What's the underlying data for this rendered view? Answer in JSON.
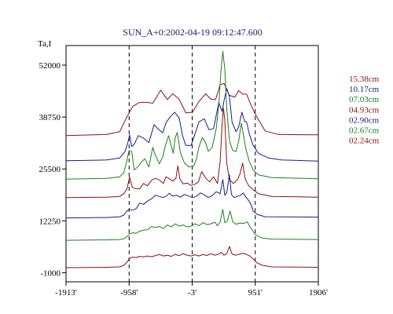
{
  "chart_data": {
    "type": "line",
    "title": "SUN_A+0:2002-04-19 09:12:47.600",
    "ylabel": "Ta,I",
    "xlabel": "",
    "x_ticks": [
      "-1913'",
      "-958'",
      "-3'",
      "951'",
      "1906'"
    ],
    "x_tick_values": [
      -1913,
      -958,
      -3,
      951,
      1906
    ],
    "xlim": [
      -1913,
      1906
    ],
    "y_ticks": [
      "52000",
      "38750",
      "25500",
      "12250",
      "-1000"
    ],
    "y_tick_values": [
      52000,
      38750,
      25500,
      12250,
      -1000
    ],
    "ylim": [
      -3300,
      57000
    ],
    "vlines": [
      -958,
      -3,
      951
    ],
    "grid": false,
    "legend_position": "right",
    "series": [
      {
        "name": "15.38cm",
        "color": "#8b1010",
        "points": [
          [
            -1913,
            34000
          ],
          [
            -1300,
            34300
          ],
          [
            -1100,
            35000
          ],
          [
            -1000,
            38500
          ],
          [
            -900,
            41500
          ],
          [
            -800,
            42500
          ],
          [
            -700,
            42500
          ],
          [
            -600,
            42300
          ],
          [
            -480,
            45600
          ],
          [
            -380,
            43200
          ],
          [
            -300,
            44700
          ],
          [
            -200,
            43300
          ],
          [
            -100,
            39800
          ],
          [
            0,
            40000
          ],
          [
            100,
            42700
          ],
          [
            200,
            44700
          ],
          [
            280,
            43300
          ],
          [
            350,
            43200
          ],
          [
            420,
            47000
          ],
          [
            480,
            47300
          ],
          [
            560,
            44300
          ],
          [
            640,
            43800
          ],
          [
            700,
            45500
          ],
          [
            760,
            44600
          ],
          [
            820,
            44600
          ],
          [
            870,
            42500
          ],
          [
            951,
            39500
          ],
          [
            1100,
            35200
          ],
          [
            1300,
            34300
          ],
          [
            1906,
            34200
          ]
        ]
      },
      {
        "name": "10.17cm",
        "color": "#1a1a8a",
        "points": [
          [
            -1913,
            27600
          ],
          [
            -1300,
            27800
          ],
          [
            -1100,
            28300
          ],
          [
            -1020,
            30000
          ],
          [
            -980,
            32000
          ],
          [
            -950,
            34200
          ],
          [
            -920,
            31200
          ],
          [
            -880,
            31800
          ],
          [
            -820,
            34000
          ],
          [
            -750,
            33500
          ],
          [
            -660,
            32200
          ],
          [
            -580,
            36800
          ],
          [
            -520,
            35700
          ],
          [
            -450,
            34700
          ],
          [
            -400,
            37300
          ],
          [
            -350,
            38500
          ],
          [
            -270,
            40000
          ],
          [
            -200,
            38500
          ],
          [
            -150,
            34000
          ],
          [
            -100,
            31500
          ],
          [
            -20,
            31500
          ],
          [
            40,
            34500
          ],
          [
            100,
            37500
          ],
          [
            180,
            38300
          ],
          [
            250,
            35500
          ],
          [
            320,
            35800
          ],
          [
            400,
            42500
          ],
          [
            450,
            40200
          ],
          [
            480,
            43000
          ],
          [
            520,
            46000
          ],
          [
            560,
            44000
          ],
          [
            600,
            37500
          ],
          [
            660,
            35000
          ],
          [
            700,
            36200
          ],
          [
            750,
            40000
          ],
          [
            790,
            37600
          ],
          [
            820,
            37500
          ],
          [
            860,
            34500
          ],
          [
            920,
            31500
          ],
          [
            1000,
            29500
          ],
          [
            1150,
            28300
          ],
          [
            1350,
            27800
          ],
          [
            1906,
            27500
          ]
        ]
      },
      {
        "name": "07.03cm",
        "color": "#1a801a",
        "points": [
          [
            -1913,
            22900
          ],
          [
            -1300,
            23100
          ],
          [
            -1100,
            23500
          ],
          [
            -1040,
            24500
          ],
          [
            -1000,
            27000
          ],
          [
            -960,
            30200
          ],
          [
            -920,
            30000
          ],
          [
            -880,
            25200
          ],
          [
            -820,
            26200
          ],
          [
            -760,
            27500
          ],
          [
            -720,
            28100
          ],
          [
            -660,
            26000
          ],
          [
            -600,
            31000
          ],
          [
            -560,
            29000
          ],
          [
            -500,
            26800
          ],
          [
            -450,
            28600
          ],
          [
            -410,
            31400
          ],
          [
            -360,
            34000
          ],
          [
            -330,
            32000
          ],
          [
            -290,
            29500
          ],
          [
            -260,
            33500
          ],
          [
            -230,
            34800
          ],
          [
            -180,
            29500
          ],
          [
            -120,
            27000
          ],
          [
            -50,
            26000
          ],
          [
            20,
            26300
          ],
          [
            60,
            28000
          ],
          [
            100,
            31200
          ],
          [
            150,
            33500
          ],
          [
            200,
            32200
          ],
          [
            240,
            30000
          ],
          [
            300,
            31000
          ],
          [
            360,
            35800
          ],
          [
            400,
            42000
          ],
          [
            430,
            50000
          ],
          [
            460,
            55500
          ],
          [
            490,
            51000
          ],
          [
            520,
            41000
          ],
          [
            560,
            32700
          ],
          [
            610,
            30200
          ],
          [
            660,
            30000
          ],
          [
            700,
            32500
          ],
          [
            740,
            37200
          ],
          [
            770,
            34500
          ],
          [
            810,
            30500
          ],
          [
            860,
            27500
          ],
          [
            920,
            25200
          ],
          [
            1000,
            24000
          ],
          [
            1200,
            23300
          ],
          [
            1906,
            23000
          ]
        ]
      },
      {
        "name": "04.93cm",
        "color": "#8b1010",
        "points": [
          [
            -1913,
            18200
          ],
          [
            -1300,
            18300
          ],
          [
            -1100,
            18500
          ],
          [
            -1040,
            19200
          ],
          [
            -990,
            20400
          ],
          [
            -950,
            23500
          ],
          [
            -910,
            20800
          ],
          [
            -860,
            20500
          ],
          [
            -800,
            20400
          ],
          [
            -740,
            21800
          ],
          [
            -680,
            21200
          ],
          [
            -620,
            22600
          ],
          [
            -560,
            23100
          ],
          [
            -500,
            22700
          ],
          [
            -440,
            21800
          ],
          [
            -400,
            23500
          ],
          [
            -350,
            23000
          ],
          [
            -300,
            22400
          ],
          [
            -250,
            23100
          ],
          [
            -220,
            26300
          ],
          [
            -190,
            23000
          ],
          [
            -140,
            21700
          ],
          [
            -80,
            21900
          ],
          [
            -20,
            21300
          ],
          [
            40,
            21600
          ],
          [
            90,
            22200
          ],
          [
            140,
            24800
          ],
          [
            200,
            23200
          ],
          [
            260,
            22200
          ],
          [
            320,
            23500
          ],
          [
            380,
            21800
          ],
          [
            420,
            27500
          ],
          [
            450,
            37000
          ],
          [
            470,
            41000
          ],
          [
            490,
            38000
          ],
          [
            520,
            27000
          ],
          [
            560,
            22800
          ],
          [
            620,
            21800
          ],
          [
            680,
            22700
          ],
          [
            720,
            24200
          ],
          [
            760,
            27000
          ],
          [
            800,
            22900
          ],
          [
            850,
            21300
          ],
          [
            920,
            20200
          ],
          [
            1000,
            19200
          ],
          [
            1200,
            18500
          ],
          [
            1906,
            18300
          ]
        ]
      },
      {
        "name": "02.90cm",
        "color": "#1a1a8a",
        "points": [
          [
            -1913,
            13000
          ],
          [
            -1300,
            13100
          ],
          [
            -1100,
            13300
          ],
          [
            -1040,
            13700
          ],
          [
            -990,
            14800
          ],
          [
            -950,
            15200
          ],
          [
            -900,
            15000
          ],
          [
            -850,
            15400
          ],
          [
            -800,
            16800
          ],
          [
            -740,
            16500
          ],
          [
            -680,
            17300
          ],
          [
            -620,
            17900
          ],
          [
            -560,
            18800
          ],
          [
            -500,
            18500
          ],
          [
            -450,
            18200
          ],
          [
            -400,
            18500
          ],
          [
            -350,
            19300
          ],
          [
            -300,
            18600
          ],
          [
            -240,
            18800
          ],
          [
            -180,
            18300
          ],
          [
            -120,
            19000
          ],
          [
            -60,
            18600
          ],
          [
            0,
            18200
          ],
          [
            60,
            18500
          ],
          [
            120,
            19400
          ],
          [
            180,
            18900
          ],
          [
            240,
            18200
          ],
          [
            300,
            18700
          ],
          [
            360,
            19700
          ],
          [
            420,
            19200
          ],
          [
            460,
            22800
          ],
          [
            490,
            18800
          ],
          [
            520,
            19500
          ],
          [
            560,
            24000
          ],
          [
            590,
            19000
          ],
          [
            630,
            18200
          ],
          [
            680,
            18500
          ],
          [
            730,
            18800
          ],
          [
            770,
            19400
          ],
          [
            800,
            18600
          ],
          [
            840,
            17700
          ],
          [
            880,
            16700
          ],
          [
            920,
            14800
          ],
          [
            980,
            13900
          ],
          [
            1100,
            13300
          ],
          [
            1906,
            13200
          ]
        ]
      },
      {
        "name": "02.67cm",
        "color": "#1a801a",
        "points": [
          [
            -1913,
            7300
          ],
          [
            -1300,
            7400
          ],
          [
            -1100,
            7500
          ],
          [
            -1040,
            7700
          ],
          [
            -990,
            8200
          ],
          [
            -950,
            9000
          ],
          [
            -900,
            9200
          ],
          [
            -850,
            9100
          ],
          [
            -800,
            9600
          ],
          [
            -740,
            9900
          ],
          [
            -680,
            10000
          ],
          [
            -620,
            10800
          ],
          [
            -560,
            10600
          ],
          [
            -500,
            10800
          ],
          [
            -440,
            10300
          ],
          [
            -380,
            11200
          ],
          [
            -320,
            10700
          ],
          [
            -260,
            11500
          ],
          [
            -200,
            10900
          ],
          [
            -140,
            11200
          ],
          [
            -80,
            10700
          ],
          [
            -20,
            10900
          ],
          [
            40,
            11500
          ],
          [
            100,
            11000
          ],
          [
            160,
            11800
          ],
          [
            220,
            11300
          ],
          [
            280,
            11500
          ],
          [
            340,
            11900
          ],
          [
            380,
            11000
          ],
          [
            420,
            12000
          ],
          [
            460,
            15200
          ],
          [
            490,
            11800
          ],
          [
            530,
            12300
          ],
          [
            570,
            14800
          ],
          [
            610,
            12000
          ],
          [
            660,
            11400
          ],
          [
            720,
            11700
          ],
          [
            780,
            11600
          ],
          [
            830,
            12000
          ],
          [
            870,
            10800
          ],
          [
            910,
            9800
          ],
          [
            960,
            8600
          ],
          [
            1050,
            7900
          ],
          [
            1200,
            7600
          ],
          [
            1906,
            7500
          ]
        ]
      },
      {
        "name": "02.24cm",
        "color": "#8b1010",
        "points": [
          [
            -1913,
            300
          ],
          [
            -1300,
            400
          ],
          [
            -1100,
            500
          ],
          [
            -1040,
            900
          ],
          [
            -990,
            1700
          ],
          [
            -950,
            2800
          ],
          [
            -900,
            3000
          ],
          [
            -850,
            2900
          ],
          [
            -800,
            3200
          ],
          [
            -740,
            3100
          ],
          [
            -680,
            3300
          ],
          [
            -620,
            3100
          ],
          [
            -560,
            3400
          ],
          [
            -500,
            3700
          ],
          [
            -440,
            3300
          ],
          [
            -380,
            3500
          ],
          [
            -320,
            3200
          ],
          [
            -260,
            3700
          ],
          [
            -200,
            3400
          ],
          [
            -140,
            3900
          ],
          [
            -80,
            3500
          ],
          [
            -20,
            3300
          ],
          [
            40,
            3600
          ],
          [
            100,
            3300
          ],
          [
            160,
            3700
          ],
          [
            220,
            3400
          ],
          [
            280,
            3900
          ],
          [
            340,
            3500
          ],
          [
            400,
            3800
          ],
          [
            440,
            4200
          ],
          [
            480,
            3500
          ],
          [
            520,
            3900
          ],
          [
            560,
            5700
          ],
          [
            600,
            3800
          ],
          [
            650,
            3500
          ],
          [
            700,
            3700
          ],
          [
            760,
            4000
          ],
          [
            820,
            3700
          ],
          [
            870,
            3300
          ],
          [
            920,
            2500
          ],
          [
            980,
            1500
          ],
          [
            1060,
            900
          ],
          [
            1200,
            500
          ],
          [
            1906,
            400
          ]
        ]
      }
    ]
  }
}
